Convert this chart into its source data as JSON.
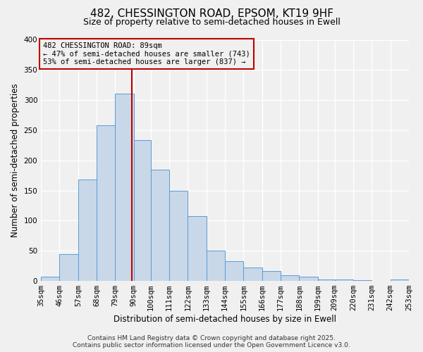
{
  "title": "482, CHESSINGTON ROAD, EPSOM, KT19 9HF",
  "subtitle": "Size of property relative to semi-detached houses in Ewell",
  "xlabel": "Distribution of semi-detached houses by size in Ewell",
  "ylabel": "Number of semi-detached properties",
  "bins": [
    35,
    46,
    57,
    68,
    79,
    90,
    100,
    111,
    122,
    133,
    144,
    155,
    166,
    177,
    188,
    199,
    209,
    220,
    231,
    242,
    253
  ],
  "bin_labels": [
    "35sqm",
    "46sqm",
    "57sqm",
    "68sqm",
    "79sqm",
    "90sqm",
    "100sqm",
    "111sqm",
    "122sqm",
    "133sqm",
    "144sqm",
    "155sqm",
    "166sqm",
    "177sqm",
    "188sqm",
    "199sqm",
    "209sqm",
    "220sqm",
    "231sqm",
    "242sqm",
    "253sqm"
  ],
  "counts": [
    7,
    44,
    168,
    258,
    311,
    234,
    185,
    149,
    108,
    50,
    33,
    22,
    17,
    9,
    7,
    2,
    2,
    1,
    0,
    2
  ],
  "bar_color": "#c8d8e8",
  "bar_edge_color": "#5b9bd5",
  "property_line_x": 89,
  "property_line_color": "#c00000",
  "annotation_text": "482 CHESSINGTON ROAD: 89sqm\n← 47% of semi-detached houses are smaller (743)\n53% of semi-detached houses are larger (837) →",
  "annotation_box_color": "#c00000",
  "ylim": [
    0,
    400
  ],
  "yticks": [
    0,
    50,
    100,
    150,
    200,
    250,
    300,
    350,
    400
  ],
  "footer_line1": "Contains HM Land Registry data © Crown copyright and database right 2025.",
  "footer_line2": "Contains public sector information licensed under the Open Government Licence v3.0.",
  "background_color": "#f0f0f0",
  "grid_color": "#ffffff",
  "title_fontsize": 11,
  "subtitle_fontsize": 9,
  "axis_label_fontsize": 8.5,
  "tick_label_fontsize": 7.5,
  "footer_fontsize": 6.5,
  "annotation_fontsize": 7.5
}
